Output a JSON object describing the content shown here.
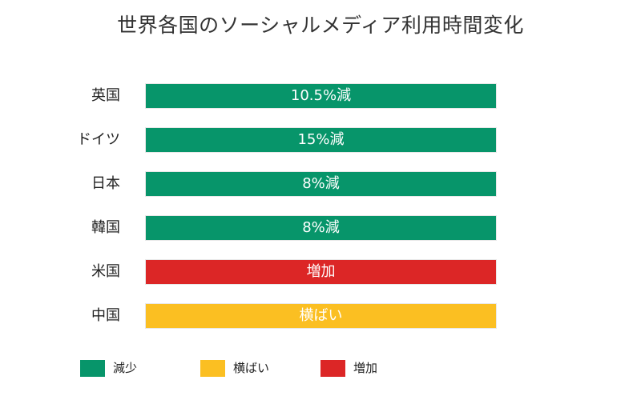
{
  "chart_data": {
    "type": "table",
    "title": "世界各国のソーシャルメディア利用時間変化",
    "rows": [
      {
        "country": "英国",
        "change": "10.5%減",
        "category": "decrease"
      },
      {
        "country": "ドイツ",
        "change": "15%減",
        "category": "decrease"
      },
      {
        "country": "日本",
        "change": "8%減",
        "category": "decrease"
      },
      {
        "country": "韓国",
        "change": "8%減",
        "category": "decrease"
      },
      {
        "country": "米国",
        "change": "増加",
        "category": "increase"
      },
      {
        "country": "中国",
        "change": "横ばい",
        "category": "flat"
      }
    ],
    "legend": [
      {
        "key": "decrease",
        "label": "減少",
        "color": "#07956a"
      },
      {
        "key": "flat",
        "label": "横ばい",
        "color": "#fbbf22"
      },
      {
        "key": "increase",
        "label": "増加",
        "color": "#dc2626"
      }
    ],
    "legend_position": "bottom-left"
  }
}
